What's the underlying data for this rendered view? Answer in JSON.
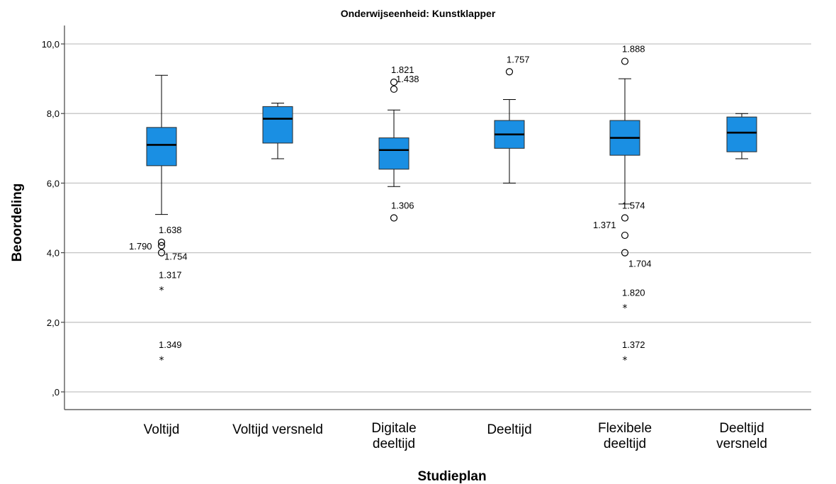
{
  "chart_data": {
    "type": "boxplot",
    "title": "Onderwijseenheid: Kunstklapper",
    "xlabel": "Studieplan",
    "ylabel": "Beoordeling",
    "ylim": [
      -0.5,
      10.5
    ],
    "yticks": [
      0,
      2,
      4,
      6,
      8,
      10
    ],
    "ytick_labels": [
      ",0",
      "2,0",
      "4,0",
      "6,0",
      "8,0",
      "10,0"
    ],
    "grid": true,
    "colors": {
      "box": "#1a8fe3",
      "grid": "#c4c4c4"
    },
    "groups": [
      {
        "category": [
          "Voltijd"
        ],
        "whisker_low": 5.1,
        "q1": 6.5,
        "median": 7.1,
        "q3": 7.6,
        "whisker_high": 9.1,
        "outliers": [
          {
            "value": 4.3,
            "label": "1.638"
          },
          {
            "value": 4.2,
            "label": "1.790"
          },
          {
            "value": 4.0,
            "label": "1.754"
          }
        ],
        "extremes": [
          {
            "value": 3.0,
            "label": "1.317"
          },
          {
            "value": 1.0,
            "label": "1.349"
          }
        ]
      },
      {
        "category": [
          "Voltijd versneld"
        ],
        "whisker_low": 6.7,
        "q1": 7.15,
        "median": 7.85,
        "q3": 8.2,
        "whisker_high": 8.3,
        "outliers": [],
        "extremes": []
      },
      {
        "category": [
          "Digitale",
          "deeltijd"
        ],
        "whisker_low": 5.9,
        "q1": 6.4,
        "median": 6.95,
        "q3": 7.3,
        "whisker_high": 8.1,
        "outliers": [
          {
            "value": 8.9,
            "label": "1.821"
          },
          {
            "value": 8.7,
            "label": "1.438"
          },
          {
            "value": 5.0,
            "label": "1.306"
          }
        ],
        "extremes": []
      },
      {
        "category": [
          "Deeltijd"
        ],
        "whisker_low": 6.0,
        "q1": 7.0,
        "median": 7.4,
        "q3": 7.8,
        "whisker_high": 8.4,
        "outliers": [
          {
            "value": 9.2,
            "label": "1.757"
          }
        ],
        "extremes": []
      },
      {
        "category": [
          "Flexibele",
          "deeltijd"
        ],
        "whisker_low": 5.4,
        "q1": 6.8,
        "median": 7.3,
        "q3": 7.8,
        "whisker_high": 9.0,
        "outliers": [
          {
            "value": 9.5,
            "label": "1.888"
          },
          {
            "value": 5.0,
            "label": "1.574"
          },
          {
            "value": 4.5,
            "label": "1.371"
          },
          {
            "value": 4.0,
            "label": "1.704"
          }
        ],
        "extremes": [
          {
            "value": 2.5,
            "label": "1.820"
          },
          {
            "value": 1.0,
            "label": "1.372"
          }
        ]
      },
      {
        "category": [
          "Deeltijd",
          "versneld"
        ],
        "whisker_low": 6.7,
        "q1": 6.9,
        "median": 7.45,
        "q3": 7.9,
        "whisker_high": 8.0,
        "outliers": [],
        "extremes": []
      }
    ]
  }
}
